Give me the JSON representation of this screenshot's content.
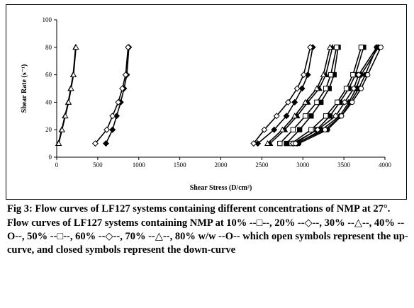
{
  "caption": {
    "title": "Fig 3: Flow curves of LF127 systems containing different concentrations of NMP at 27°.",
    "description": "Flow curves of LF127 systems containing NMP at 10% --□--, 20% --◇--, 30% --△--, 40% --O--, 50% --□--, 60% --◇--, 70% --△--, 80% w/w --O-- which open symbols represent the up-curve, and closed symbols represent the down-curve"
  },
  "chart_data": {
    "type": "line",
    "title": "",
    "xlabel": "Shear Stress (D/cm²)",
    "ylabel": "Shear Rate (s⁻¹)",
    "xlim": [
      0,
      4000
    ],
    "ylim": [
      0,
      100
    ],
    "xticks": [
      0,
      500,
      1000,
      1500,
      2000,
      2500,
      3000,
      3500,
      4000
    ],
    "yticks": [
      0,
      20,
      40,
      60,
      80,
      100
    ],
    "grid": false,
    "legend": "none",
    "series": [
      {
        "marker": "triangle",
        "filled": true,
        "x": [
          20,
          60,
          100,
          140,
          170,
          200,
          230
        ],
        "y": [
          10,
          20,
          30,
          40,
          50,
          60,
          80
        ]
      },
      {
        "marker": "triangle",
        "filled": false,
        "x": [
          25,
          65,
          105,
          145,
          175,
          205,
          235
        ],
        "y": [
          10,
          20,
          30,
          40,
          50,
          60,
          80
        ]
      },
      {
        "marker": "diamond",
        "filled": true,
        "x": [
          600,
          680,
          730,
          780,
          820,
          855,
          880
        ],
        "y": [
          10,
          20,
          30,
          40,
          50,
          60,
          80
        ]
      },
      {
        "marker": "diamond",
        "filled": false,
        "x": [
          470,
          610,
          680,
          750,
          800,
          840,
          870
        ],
        "y": [
          10,
          20,
          30,
          40,
          50,
          60,
          80
        ]
      },
      {
        "marker": "diamond",
        "filled": true,
        "x": [
          2450,
          2650,
          2800,
          2900,
          2990,
          3060,
          3120
        ],
        "y": [
          10,
          20,
          30,
          40,
          50,
          60,
          80
        ]
      },
      {
        "marker": "diamond",
        "filled": false,
        "x": [
          2400,
          2530,
          2680,
          2820,
          2930,
          3010,
          3090
        ],
        "y": [
          10,
          20,
          30,
          40,
          50,
          60,
          80
        ]
      },
      {
        "marker": "triangle",
        "filled": true,
        "x": [
          2600,
          2780,
          2930,
          3060,
          3200,
          3280,
          3360
        ],
        "y": [
          10,
          20,
          30,
          40,
          50,
          60,
          80
        ]
      },
      {
        "marker": "triangle",
        "filled": false,
        "x": [
          2570,
          2750,
          2900,
          3030,
          3170,
          3250,
          3330
        ],
        "y": [
          10,
          20,
          30,
          40,
          50,
          60,
          80
        ]
      },
      {
        "marker": "square",
        "filled": true,
        "x": [
          2800,
          2960,
          3100,
          3220,
          3320,
          3380,
          3430
        ],
        "y": [
          10,
          20,
          30,
          40,
          50,
          60,
          80
        ]
      },
      {
        "marker": "square",
        "filled": false,
        "x": [
          2720,
          2880,
          3030,
          3170,
          3280,
          3340,
          3410
        ],
        "y": [
          10,
          20,
          30,
          40,
          50,
          60,
          80
        ]
      },
      {
        "marker": "square",
        "filled": true,
        "x": [
          2900,
          3170,
          3330,
          3450,
          3560,
          3640,
          3740
        ],
        "y": [
          10,
          20,
          30,
          40,
          50,
          60,
          80
        ]
      },
      {
        "marker": "square",
        "filled": false,
        "x": [
          2860,
          3100,
          3280,
          3420,
          3530,
          3610,
          3710
        ],
        "y": [
          10,
          20,
          30,
          40,
          50,
          60,
          80
        ]
      },
      {
        "marker": "diamond",
        "filled": true,
        "x": [
          2930,
          3230,
          3450,
          3560,
          3650,
          3710,
          3920
        ],
        "y": [
          10,
          20,
          30,
          40,
          50,
          60,
          80
        ]
      },
      {
        "marker": "diamond",
        "filled": false,
        "x": [
          2880,
          3180,
          3400,
          3510,
          3620,
          3680,
          3900
        ],
        "y": [
          10,
          20,
          30,
          40,
          50,
          60,
          80
        ]
      },
      {
        "marker": "circle",
        "filled": true,
        "x": [
          2950,
          3300,
          3470,
          3580,
          3680,
          3760,
          3900
        ],
        "y": [
          10,
          20,
          30,
          40,
          50,
          60,
          80
        ]
      },
      {
        "marker": "circle",
        "filled": false,
        "x": [
          2910,
          3270,
          3470,
          3600,
          3710,
          3790,
          3950
        ],
        "y": [
          10,
          20,
          30,
          40,
          50,
          60,
          80
        ]
      }
    ]
  }
}
